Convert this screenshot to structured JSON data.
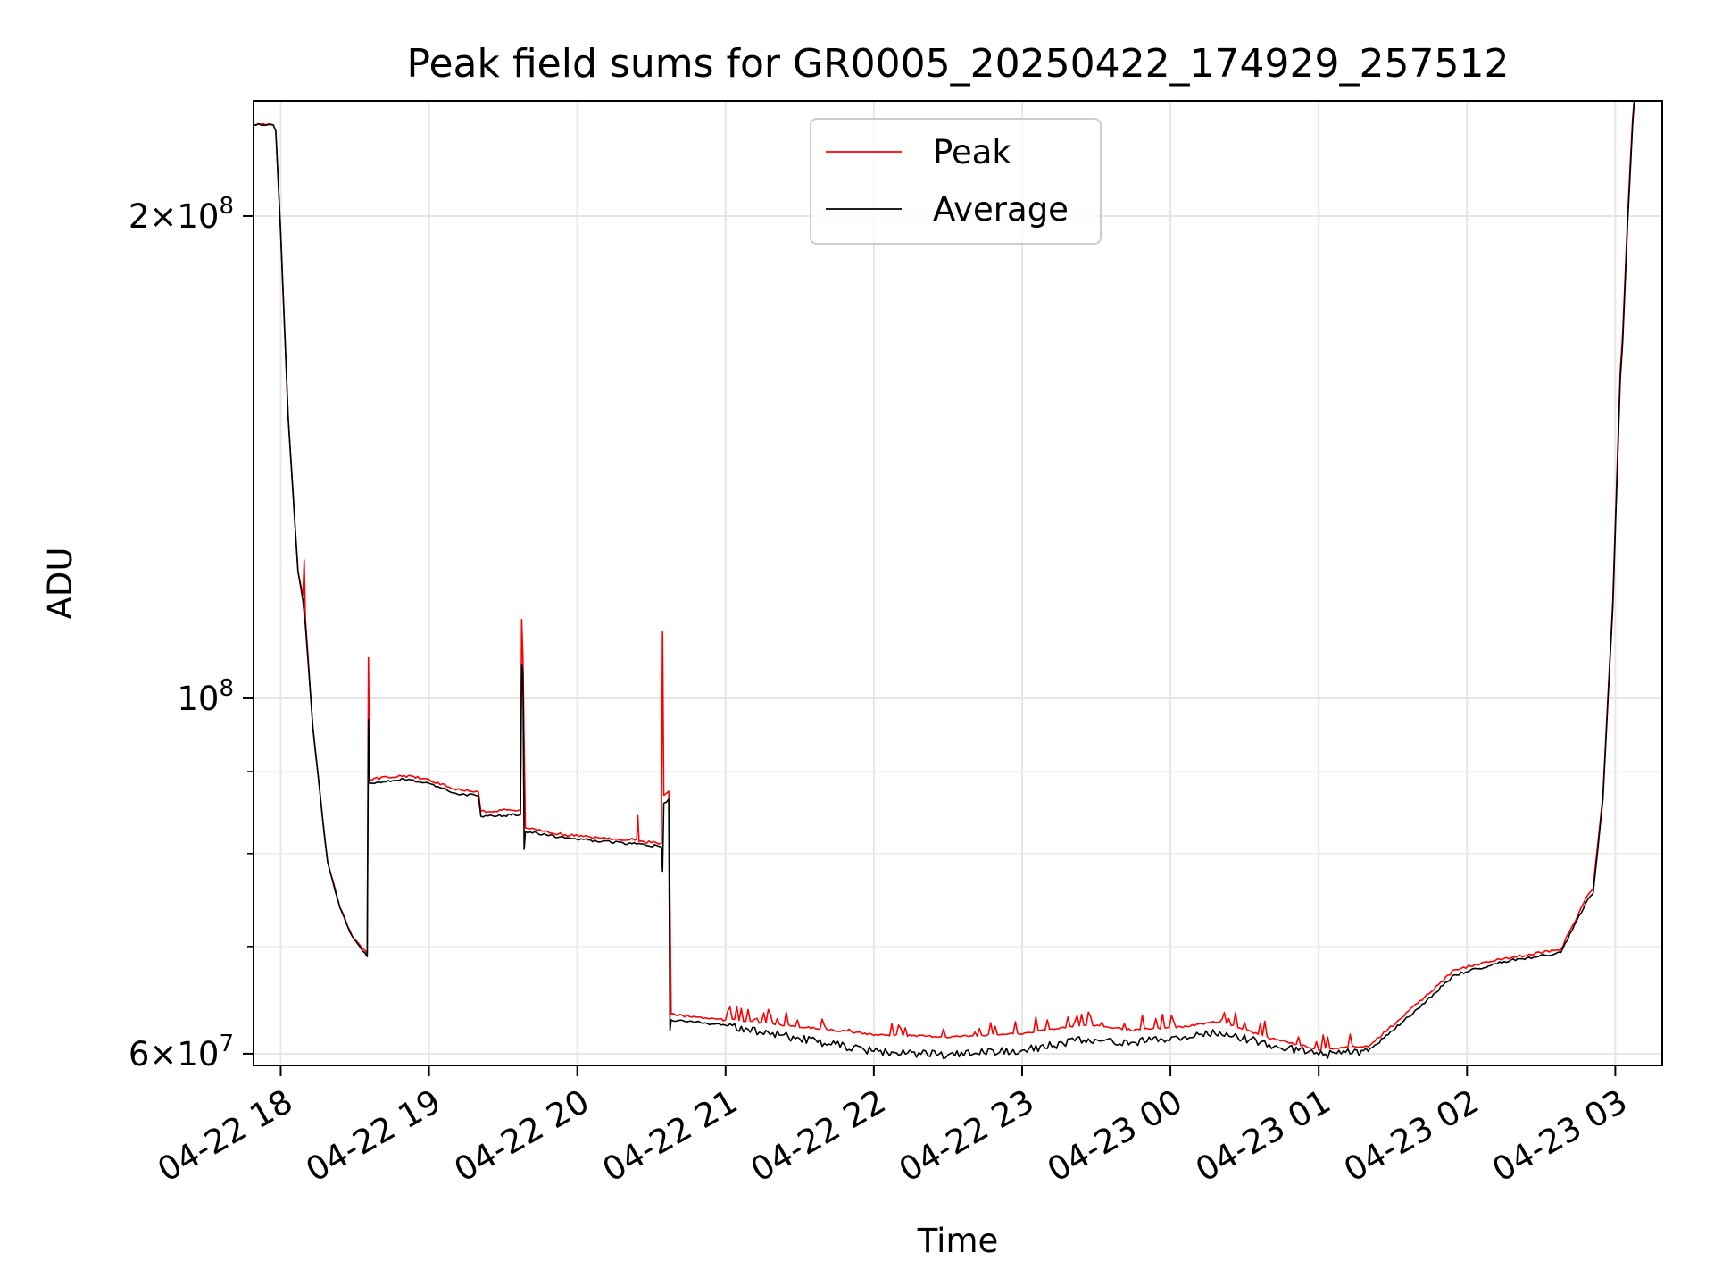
{
  "chart_data": {
    "type": "line",
    "title": "Peak field sums for GR0005_20250422_174929_257512",
    "xlabel": "Time",
    "ylabel": "ADU",
    "x_axis": "time",
    "xlim": [
      "2025-04-22T17:49",
      "2025-04-23T03:19"
    ],
    "ylim": [
      59000000,
      236000000
    ],
    "y_scale": "log",
    "grid": true,
    "legend_position": "upper center",
    "x_ticks": [
      {
        "t": "2025-04-22T18:00",
        "label": "04-22 18"
      },
      {
        "t": "2025-04-22T19:00",
        "label": "04-22 19"
      },
      {
        "t": "2025-04-22T20:00",
        "label": "04-22 20"
      },
      {
        "t": "2025-04-22T21:00",
        "label": "04-22 21"
      },
      {
        "t": "2025-04-22T22:00",
        "label": "04-22 22"
      },
      {
        "t": "2025-04-22T23:00",
        "label": "04-22 23"
      },
      {
        "t": "2025-04-23T00:00",
        "label": "04-23 00"
      },
      {
        "t": "2025-04-23T01:00",
        "label": "04-23 01"
      },
      {
        "t": "2025-04-23T02:00",
        "label": "04-23 02"
      },
      {
        "t": "2025-04-23T03:00",
        "label": "04-23 03"
      }
    ],
    "y_major_ticks": [
      {
        "v": 60000000,
        "mant": "6",
        "exp": "7"
      },
      {
        "v": 100000000,
        "mant": "",
        "exp": "8"
      },
      {
        "v": 200000000,
        "mant": "2",
        "exp": "8"
      }
    ],
    "y_minor_ticks": [
      70000000,
      80000000,
      90000000
    ],
    "series": [
      {
        "name": "Peak",
        "color": "#ff0000",
        "points": [
          [
            "2025-04-22T17:49:00",
            228000000
          ],
          [
            "2025-04-22T17:57:00",
            228000000
          ],
          [
            "2025-04-22T17:58:00",
            226000000
          ],
          [
            "2025-04-22T18:00:00",
            195000000
          ],
          [
            "2025-04-22T18:03:00",
            150000000
          ],
          [
            "2025-04-22T18:07:00",
            120000000
          ],
          [
            "2025-04-22T18:09:00",
            116000000
          ],
          [
            "2025-04-22T18:09:30",
            122000000
          ],
          [
            "2025-04-22T18:10:00",
            112000000
          ],
          [
            "2025-04-22T18:13:00",
            96000000
          ],
          [
            "2025-04-22T18:17:00",
            84000000
          ],
          [
            "2025-04-22T18:19:00",
            79000000
          ],
          [
            "2025-04-22T18:24:00",
            74000000
          ],
          [
            "2025-04-22T18:29:00",
            71000000
          ],
          [
            "2025-04-22T18:35:00",
            69300000
          ],
          [
            "2025-04-22T18:35:30",
            106000000
          ],
          [
            "2025-04-22T18:36:00",
            89000000
          ],
          [
            "2025-04-22T18:50:00",
            89500000
          ],
          [
            "2025-04-22T19:00:00",
            89000000
          ],
          [
            "2025-04-22T19:10:00",
            87800000
          ],
          [
            "2025-04-22T19:20:00",
            87400000
          ],
          [
            "2025-04-22T19:21:00",
            85000000
          ],
          [
            "2025-04-22T19:37:00",
            85200000
          ],
          [
            "2025-04-22T19:37:30",
            112000000
          ],
          [
            "2025-04-22T19:38:00",
            106000000
          ],
          [
            "2025-04-22T19:39:00",
            83000000
          ],
          [
            "2025-04-22T19:55:00",
            82200000
          ],
          [
            "2025-04-22T20:10:00",
            81800000
          ],
          [
            "2025-04-22T20:24:00",
            81600000
          ],
          [
            "2025-04-22T20:24:30",
            84500000
          ],
          [
            "2025-04-22T20:25:00",
            81400000
          ],
          [
            "2025-04-22T20:34:00",
            81200000
          ],
          [
            "2025-04-22T20:34:30",
            110000000
          ],
          [
            "2025-04-22T20:35:00",
            87000000
          ],
          [
            "2025-04-22T20:37:00",
            87500000
          ],
          [
            "2025-04-22T20:38:00",
            63500000
          ],
          [
            "2025-04-22T21:00:00",
            63000000
          ],
          [
            "2025-04-22T21:30:00",
            62300000
          ],
          [
            "2025-04-22T22:00:00",
            61600000
          ],
          [
            "2025-04-22T22:30:00",
            61400000
          ],
          [
            "2025-04-22T23:00:00",
            61700000
          ],
          [
            "2025-04-22T23:25:00",
            62500000
          ],
          [
            "2025-04-22T23:45:00",
            62000000
          ],
          [
            "2025-04-23T00:05:00",
            62300000
          ],
          [
            "2025-04-23T00:20:00",
            62800000
          ],
          [
            "2025-04-23T00:40:00",
            61300000
          ],
          [
            "2025-04-23T01:00:00",
            60300000
          ],
          [
            "2025-04-23T01:20:00",
            60600000
          ],
          [
            "2025-04-23T01:40:00",
            64500000
          ],
          [
            "2025-04-23T01:55:00",
            67700000
          ],
          [
            "2025-04-23T02:15:00",
            68800000
          ],
          [
            "2025-04-23T02:38:00",
            69700000
          ],
          [
            "2025-04-23T02:48:00",
            75000000
          ],
          [
            "2025-04-23T02:51:00",
            76000000
          ],
          [
            "2025-04-23T02:55:00",
            87000000
          ],
          [
            "2025-04-23T02:59:00",
            115000000
          ],
          [
            "2025-04-23T03:02:00",
            160000000
          ],
          [
            "2025-04-23T03:03:00",
            169000000
          ],
          [
            "2025-04-23T03:05:00",
            200000000
          ],
          [
            "2025-04-23T03:07:00",
            230000000
          ],
          [
            "2025-04-23T03:08:00",
            240000000
          ]
        ]
      },
      {
        "name": "Average",
        "color": "#000000",
        "points": [
          [
            "2025-04-22T17:49:00",
            228000000
          ],
          [
            "2025-04-22T17:57:00",
            228000000
          ],
          [
            "2025-04-22T17:58:00",
            226000000
          ],
          [
            "2025-04-22T18:00:00",
            195000000
          ],
          [
            "2025-04-22T18:03:00",
            150000000
          ],
          [
            "2025-04-22T18:07:00",
            120000000
          ],
          [
            "2025-04-22T18:09:00",
            115000000
          ],
          [
            "2025-04-22T18:10:00",
            111000000
          ],
          [
            "2025-04-22T18:13:00",
            96000000
          ],
          [
            "2025-04-22T18:17:00",
            84000000
          ],
          [
            "2025-04-22T18:19:00",
            79000000
          ],
          [
            "2025-04-22T18:24:00",
            74000000
          ],
          [
            "2025-04-22T18:29:00",
            71000000
          ],
          [
            "2025-04-22T18:35:00",
            69000000
          ],
          [
            "2025-04-22T18:35:30",
            97000000
          ],
          [
            "2025-04-22T18:36:00",
            88500000
          ],
          [
            "2025-04-22T18:50:00",
            89000000
          ],
          [
            "2025-04-22T19:00:00",
            88500000
          ],
          [
            "2025-04-22T19:10:00",
            87300000
          ],
          [
            "2025-04-22T19:20:00",
            86900000
          ],
          [
            "2025-04-22T19:21:00",
            84400000
          ],
          [
            "2025-04-22T19:37:00",
            84600000
          ],
          [
            "2025-04-22T19:37:30",
            105000000
          ],
          [
            "2025-04-22T19:38:00",
            104000000
          ],
          [
            "2025-04-22T19:38:30",
            80500000
          ],
          [
            "2025-04-22T19:39:00",
            82600000
          ],
          [
            "2025-04-22T19:55:00",
            81800000
          ],
          [
            "2025-04-22T20:10:00",
            81400000
          ],
          [
            "2025-04-22T20:24:00",
            81100000
          ],
          [
            "2025-04-22T20:34:00",
            80800000
          ],
          [
            "2025-04-22T20:34:30",
            78000000
          ],
          [
            "2025-04-22T20:35:00",
            86000000
          ],
          [
            "2025-04-22T20:37:00",
            86500000
          ],
          [
            "2025-04-22T20:37:30",
            62000000
          ],
          [
            "2025-04-22T20:38:00",
            63000000
          ],
          [
            "2025-04-22T21:00:00",
            62500000
          ],
          [
            "2025-04-22T21:30:00",
            61300000
          ],
          [
            "2025-04-22T22:00:00",
            60200000
          ],
          [
            "2025-04-22T22:30:00",
            59900000
          ],
          [
            "2025-04-22T23:00:00",
            60300000
          ],
          [
            "2025-04-22T23:25:00",
            61200000
          ],
          [
            "2025-04-22T23:45:00",
            61000000
          ],
          [
            "2025-04-23T00:05:00",
            61400000
          ],
          [
            "2025-04-23T00:20:00",
            61900000
          ],
          [
            "2025-04-23T00:40:00",
            60800000
          ],
          [
            "2025-04-23T01:00:00",
            59900000
          ],
          [
            "2025-04-23T01:20:00",
            60200000
          ],
          [
            "2025-04-23T01:40:00",
            64000000
          ],
          [
            "2025-04-23T01:55:00",
            67200000
          ],
          [
            "2025-04-23T02:15:00",
            68500000
          ],
          [
            "2025-04-23T02:38:00",
            69400000
          ],
          [
            "2025-04-23T02:48:00",
            74500000
          ],
          [
            "2025-04-23T02:51:00",
            75500000
          ],
          [
            "2025-04-23T02:55:00",
            86500000
          ],
          [
            "2025-04-23T02:59:00",
            114000000
          ],
          [
            "2025-04-23T03:02:00",
            158000000
          ],
          [
            "2025-04-23T03:03:00",
            167000000
          ],
          [
            "2025-04-23T03:05:00",
            198000000
          ],
          [
            "2025-04-23T03:07:00",
            228000000
          ],
          [
            "2025-04-23T03:08:00",
            240000000
          ]
        ]
      }
    ]
  }
}
